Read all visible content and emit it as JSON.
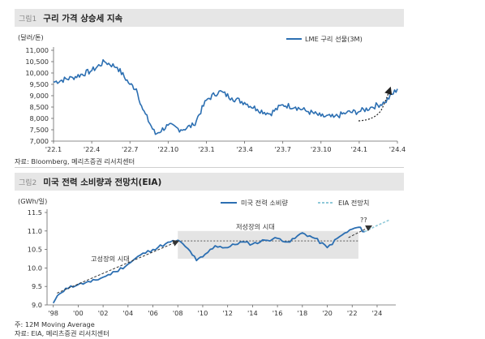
{
  "figure1": {
    "number": "그림1",
    "title": "구리 가격 상승세 지속",
    "source": "자료: Bloomberg, 메리츠증권 리서치센터"
  },
  "figure2": {
    "number": "그림2",
    "title": "미국 전력 소비량과 전망치(EIA)",
    "footnote": "주: 12M Moving Average",
    "source": "자료: EIA, 메리츠증권 리서치센터"
  },
  "chart_data": [
    {
      "type": "line",
      "title": "구리 가격 상승세 지속",
      "ylabel": "(달러/톤)",
      "ylim": [
        7000,
        11000
      ],
      "yticks": [
        "11,000",
        "10,500",
        "10,000",
        "9,500",
        "9,000",
        "8,500",
        "8,000",
        "7,500",
        "7,000"
      ],
      "ytick_values": [
        11000,
        10500,
        10000,
        9500,
        9000,
        8500,
        8000,
        7500,
        7000
      ],
      "xticks": [
        "'22.1",
        "'22.4",
        "'22.7",
        "'22.10",
        "'23.1",
        "'23.4",
        "'23.7",
        "'23.10",
        "'24.1",
        "'24.4"
      ],
      "legend_position": "top-right",
      "series": [
        {
          "name": "LME 구리 선물(3M)",
          "color": "#2c6fb2",
          "x": [
            0,
            1.5,
            3,
            4,
            5,
            6,
            6.5,
            7,
            8,
            9,
            10,
            11,
            12,
            13,
            14,
            15,
            16,
            17,
            18,
            19,
            20,
            21,
            22,
            23,
            24,
            25,
            26,
            27
          ],
          "values": [
            9600,
            9800,
            10100,
            10500,
            10250,
            9500,
            9300,
            8400,
            7300,
            7700,
            7500,
            7700,
            8800,
            9200,
            8900,
            8700,
            8400,
            8200,
            8600,
            8500,
            8300,
            8100,
            8050,
            8250,
            8300,
            8500,
            8700,
            9300
          ]
        }
      ],
      "annotation": "dotted arrow showing upward trend"
    },
    {
      "type": "line",
      "title": "미국 전력 소비량과 전망치(EIA)",
      "ylabel": "(GWh/일)",
      "ylim": [
        9.0,
        11.5
      ],
      "yticks": [
        "11.5",
        "11.0",
        "10.5",
        "10.0",
        "9.5",
        "9.0"
      ],
      "ytick_values": [
        11.5,
        11.0,
        10.5,
        10.0,
        9.5,
        9.0
      ],
      "xticks": [
        "'98",
        "'00",
        "'02",
        "'04",
        "'06",
        "'08",
        "'10",
        "'12",
        "'14",
        "'16",
        "'18",
        "'20",
        "'22",
        "'24"
      ],
      "xtick_values": [
        1998,
        2000,
        2002,
        2004,
        2006,
        2008,
        2010,
        2012,
        2014,
        2016,
        2018,
        2020,
        2022,
        2024
      ],
      "legend_position": "top-right",
      "annotations": [
        "고성장의 시대",
        "저성장의 시대",
        "??"
      ],
      "series": [
        {
          "name": "미국 전력 소비량",
          "color": "#2c6fb2",
          "x": [
            1998,
            1998.5,
            1999,
            2000,
            2001,
            2002,
            2003,
            2004,
            2005,
            2006,
            2007,
            2008,
            2009,
            2009.5,
            2010,
            2011,
            2012,
            2013,
            2014,
            2015,
            2016,
            2017,
            2018,
            2019,
            2020,
            2021,
            2022,
            2022.5,
            2023
          ],
          "values": [
            9.05,
            9.3,
            9.45,
            9.55,
            9.62,
            9.75,
            9.9,
            10.1,
            10.35,
            10.5,
            10.65,
            10.75,
            10.45,
            10.2,
            10.3,
            10.6,
            10.55,
            10.7,
            10.65,
            10.75,
            10.8,
            10.7,
            10.95,
            10.8,
            10.55,
            10.85,
            11.05,
            11.1,
            10.98
          ]
        },
        {
          "name": "EIA 전망치",
          "color": "#8fc9d9",
          "x": [
            2023,
            2024,
            2025
          ],
          "values": [
            10.98,
            11.15,
            11.3
          ]
        }
      ]
    }
  ]
}
